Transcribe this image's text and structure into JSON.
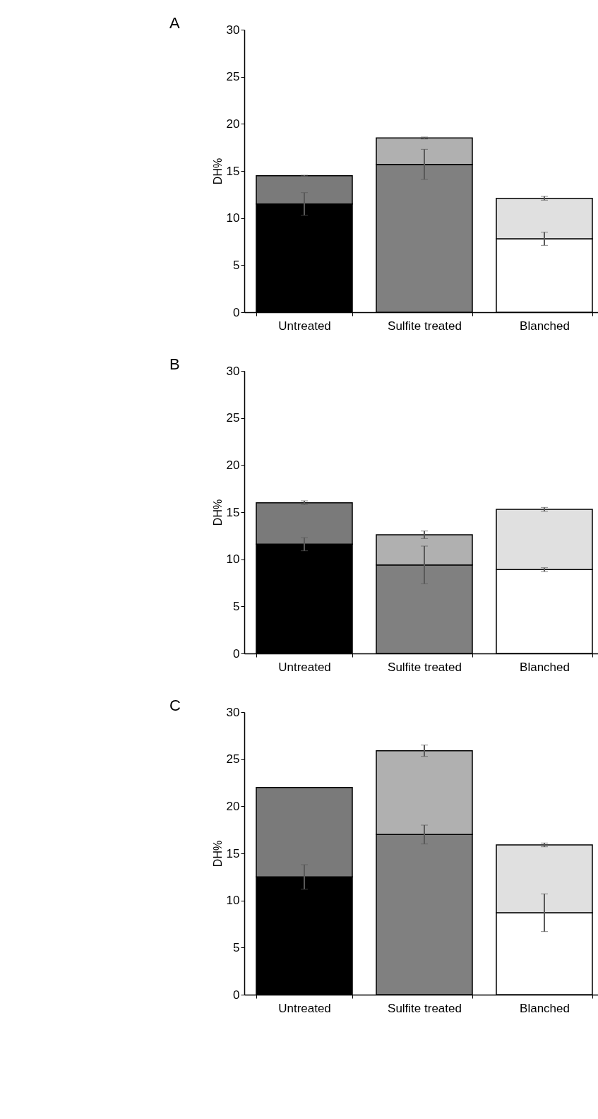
{
  "chart_data": [
    {
      "type": "bar",
      "title": "A",
      "ylabel": "DH%",
      "stacked": true,
      "categories": [
        "Untreated",
        "Sulfite treated",
        "Blanched"
      ],
      "ylim": [
        0,
        30
      ],
      "yticks": [
        0,
        5,
        10,
        15,
        20,
        25,
        30
      ],
      "series": [
        {
          "colors": [
            "#000000",
            "#808080",
            "#ffffff"
          ],
          "values": [
            11.5,
            15.7,
            7.8
          ],
          "errors": [
            1.2,
            1.6,
            0.7
          ]
        },
        {
          "colors": [
            "#7a7a7a",
            "#b0b0b0",
            "#e0e0e0"
          ],
          "values": [
            3.0,
            2.8,
            4.3
          ],
          "errors": [
            0.05,
            0.1,
            0.2
          ]
        }
      ]
    },
    {
      "type": "bar",
      "title": "B",
      "ylabel": "DH%",
      "stacked": true,
      "categories": [
        "Untreated",
        "Sulfite treated",
        "Blanched"
      ],
      "ylim": [
        0,
        30
      ],
      "yticks": [
        0,
        5,
        10,
        15,
        20,
        25,
        30
      ],
      "series": [
        {
          "colors": [
            "#000000",
            "#808080",
            "#ffffff"
          ],
          "values": [
            11.6,
            9.4,
            8.9
          ],
          "errors": [
            0.7,
            2.0,
            0.2
          ]
        },
        {
          "colors": [
            "#7a7a7a",
            "#b0b0b0",
            "#e0e0e0"
          ],
          "values": [
            4.4,
            3.2,
            6.4
          ],
          "errors": [
            0.2,
            0.4,
            0.2
          ]
        }
      ]
    },
    {
      "type": "bar",
      "title": "C",
      "ylabel": "DH%",
      "stacked": true,
      "categories": [
        "Untreated",
        "Sulfite treated",
        "Blanched"
      ],
      "ylim": [
        0,
        30
      ],
      "yticks": [
        0,
        5,
        10,
        15,
        20,
        25,
        30
      ],
      "series": [
        {
          "colors": [
            "#000000",
            "#808080",
            "#ffffff"
          ],
          "values": [
            12.5,
            17.0,
            8.7
          ],
          "errors": [
            1.3,
            1.0,
            2.0
          ]
        },
        {
          "colors": [
            "#7a7a7a",
            "#b0b0b0",
            "#e0e0e0"
          ],
          "values": [
            9.5,
            8.9,
            7.2
          ],
          "errors": [
            null,
            0.6,
            0.2
          ]
        }
      ]
    }
  ]
}
